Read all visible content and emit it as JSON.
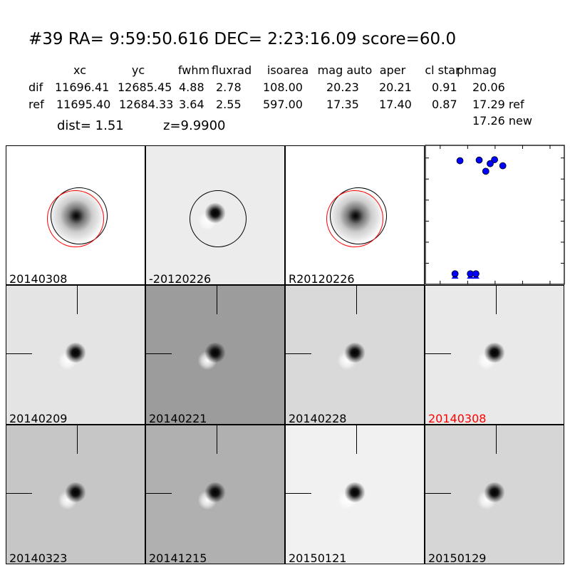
{
  "header": {
    "title": "#39   RA= 9:59:50.616 DEC= 2:23:16.09      score=60.0",
    "columns": [
      "xc",
      "yc",
      "fwhm",
      "fluxrad",
      "isoarea",
      "mag auto",
      "aper",
      "cl star",
      "phmag"
    ],
    "rows": [
      {
        "label": "dif",
        "values": [
          "11696.41",
          "12685.45",
          "4.88",
          "2.78",
          "108.00",
          "20.23",
          "20.21",
          "0.91",
          "20.06"
        ]
      },
      {
        "label": "ref",
        "values": [
          "11695.40",
          "12684.33",
          "3.64",
          "2.55",
          "597.00",
          "17.35",
          "17.40",
          "0.87",
          "17.29 ref"
        ]
      }
    ],
    "extra_phmag": "17.26 new",
    "dist": "dist=  1.51",
    "z": "z=9.9900"
  },
  "panels": [
    {
      "label": "20140308",
      "bg": "#ffffff",
      "type": "ref",
      "label_color": "#000000"
    },
    {
      "label": "-20120226",
      "bg": "#ececec",
      "type": "diff-circle",
      "label_color": "#000000"
    },
    {
      "label": "R20120226",
      "bg": "#ffffff",
      "type": "ref",
      "label_color": "#000000"
    },
    {
      "label": "20140209",
      "bg": "#e4e4e4",
      "type": "diff",
      "label_color": "#000000"
    },
    {
      "label": "20140221",
      "bg": "#9c9c9c",
      "type": "diff",
      "label_color": "#000000"
    },
    {
      "label": "20140228",
      "bg": "#d9d9d9",
      "type": "diff",
      "label_color": "#000000"
    },
    {
      "label": "20140308",
      "bg": "#e9e9e9",
      "type": "diff",
      "label_color": "#ff0000"
    },
    {
      "label": "20140323",
      "bg": "#c6c6c6",
      "type": "diff",
      "label_color": "#000000"
    },
    {
      "label": "20141215",
      "bg": "#b0b0b0",
      "type": "diff",
      "label_color": "#000000"
    },
    {
      "label": "20150121",
      "bg": "#f1f1f1",
      "type": "diff",
      "label_color": "#000000"
    },
    {
      "label": "20150129",
      "bg": "#d6d6d6",
      "type": "diff",
      "label_color": "#000000"
    }
  ],
  "chart_data": {
    "type": "scatter",
    "xlim": [
      -127,
      126
    ],
    "ylim": [
      26,
      19.4
    ],
    "y_inverted": true,
    "xticks": [
      "−100",
      "−50",
      "0",
      "50",
      "100"
    ],
    "xtick_values": [
      -100,
      -50,
      0,
      50,
      100
    ],
    "yticks": [
      "20",
      "21",
      "22",
      "23",
      "24",
      "25",
      "26"
    ],
    "ytick_values": [
      20,
      21,
      22,
      23,
      24,
      25,
      26
    ],
    "marker_color": "#0000ff",
    "points": [
      {
        "x": -64,
        "y": 20.13
      },
      {
        "x": -29,
        "y": 20.1
      },
      {
        "x": -1,
        "y": 20.08
      },
      {
        "x": -9,
        "y": 20.27
      },
      {
        "x": -17,
        "y": 20.63
      },
      {
        "x": 14,
        "y": 20.37
      },
      {
        "x": -73,
        "y": 25.5
      },
      {
        "x": -45,
        "y": 25.5
      },
      {
        "x": -35,
        "y": 25.5
      }
    ],
    "upper_limits": [
      {
        "x": -73,
        "y": 25.6
      },
      {
        "x": -45,
        "y": 25.6
      },
      {
        "x": -35,
        "y": 25.6
      }
    ]
  }
}
